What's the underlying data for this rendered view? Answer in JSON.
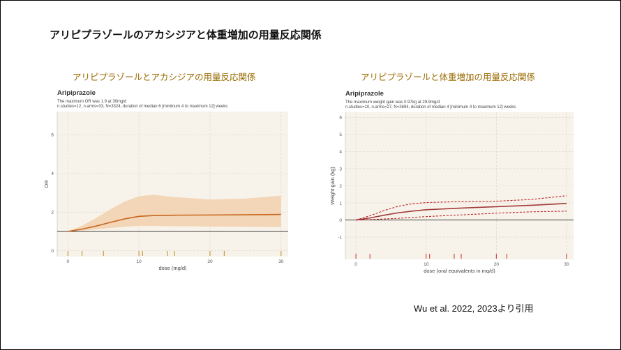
{
  "slide": {
    "title": "アリピプラゾールのアカシジアと体重増加の用量反応関係",
    "citation": "Wu et al. 2022, 2023より引用"
  },
  "chart_data": [
    {
      "type": "line",
      "panel_title": "アリピプラゾールとアカシジアの用量反応関係",
      "title": "Aripiprazole",
      "subtitle_line1": "The maximum OR was 1.9 at 30mg/d",
      "subtitle_line2": "n.studies=12, n.arms=33, N=3324, duration of median 6 [minimum 4 to maximum 12] weeks",
      "xlabel": "dose (mg/d)",
      "ylabel": "OR",
      "xlim": [
        -1.5,
        31
      ],
      "ylim": [
        -0.3,
        7.2
      ],
      "x_ticks": [
        0,
        10,
        20,
        30
      ],
      "y_ticks": [
        0,
        2,
        4,
        6
      ],
      "reference_line": 1,
      "colors": {
        "line": "#c8671e",
        "band": "#f2d4b4",
        "panel": "#f8f3ea",
        "rug": "#b58a1a"
      },
      "series": [
        {
          "type": "line",
          "x": [
            0,
            2,
            4,
            6,
            8,
            10,
            12,
            15,
            20,
            25,
            30
          ],
          "values": [
            1.0,
            1.12,
            1.28,
            1.47,
            1.65,
            1.78,
            1.82,
            1.84,
            1.85,
            1.86,
            1.88
          ]
        },
        {
          "type": "band",
          "x": [
            0,
            2,
            4,
            6,
            8,
            10,
            12,
            15,
            20,
            25,
            30
          ],
          "lower": [
            1.0,
            1.04,
            1.1,
            1.18,
            1.24,
            1.28,
            1.28,
            1.27,
            1.25,
            1.24,
            1.22
          ],
          "upper": [
            1.0,
            1.3,
            1.7,
            2.15,
            2.55,
            2.82,
            2.9,
            2.78,
            2.65,
            2.7,
            2.85
          ]
        }
      ],
      "rug": [
        0,
        2,
        5,
        10,
        10.5,
        14,
        15,
        20,
        22,
        30
      ]
    },
    {
      "type": "line",
      "panel_title": "アリピプラゾールと体重増加の用量反応関係",
      "title": "Aripiprazole",
      "subtitle_line1": "The maximum weight gain was 0.97kg at 29.9mg/d",
      "subtitle_line2": "n.studies=10, n.arms=27, N=2694, duration of median 4 [minimum 4 to maximum 12] weeks",
      "xlabel": "dose (oral equivalents in mg/d)",
      "ylabel": "Weight gain (kg)",
      "xlim": [
        -1.5,
        31
      ],
      "ylim": [
        -2.3,
        6.3
      ],
      "x_ticks": [
        0,
        10,
        20,
        30
      ],
      "y_ticks": [
        -1,
        0,
        1,
        2,
        3,
        4,
        5,
        6
      ],
      "reference_line": 0,
      "colors": {
        "line": "#a03a3a",
        "ci": "#b8262a",
        "panel": "#f8f3ea",
        "rug": "#c02a2a"
      },
      "series": [
        {
          "type": "line",
          "x": [
            0,
            2,
            4,
            6,
            8,
            10,
            15,
            20,
            25,
            30
          ],
          "values": [
            0,
            0.12,
            0.28,
            0.42,
            0.52,
            0.6,
            0.7,
            0.78,
            0.86,
            0.97
          ]
        },
        {
          "type": "dashed",
          "x": [
            0,
            2,
            4,
            6,
            8,
            10,
            15,
            20,
            25,
            30
          ],
          "values": [
            0,
            0.25,
            0.55,
            0.8,
            0.95,
            1.02,
            1.08,
            1.1,
            1.2,
            1.42
          ]
        },
        {
          "type": "dashed",
          "x": [
            0,
            2,
            4,
            6,
            8,
            10,
            15,
            20,
            25,
            30
          ],
          "values": [
            0,
            0.02,
            0.06,
            0.1,
            0.15,
            0.2,
            0.3,
            0.4,
            0.48,
            0.52
          ]
        }
      ],
      "rug": [
        0,
        2,
        10,
        10.5,
        14,
        15,
        20,
        21.5,
        30
      ]
    }
  ]
}
